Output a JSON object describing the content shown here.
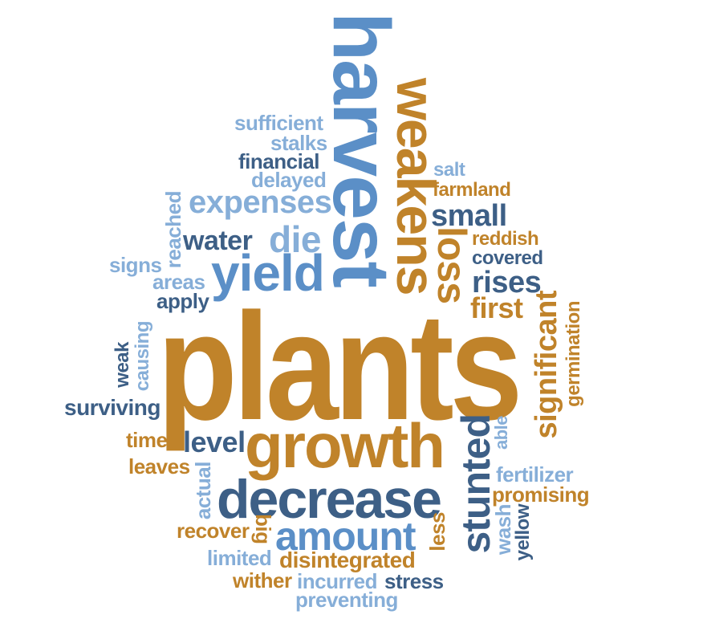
{
  "colors": {
    "orange": "#c0832a",
    "blue": "#5b8fc7",
    "light_blue": "#86aed8",
    "dark_blue": "#3d5f86"
  },
  "words": {
    "plants": "plants",
    "harvest": "harvest",
    "weakens": "weakens",
    "growth": "growth",
    "decrease": "decrease",
    "yield": "yield",
    "amount": "amount",
    "stunted": "stunted",
    "loss": "loss",
    "significant": "significant",
    "expenses": "expenses",
    "die": "die",
    "water": "water",
    "small": "small",
    "rises": "rises",
    "first": "first",
    "sufficient": "sufficient",
    "stalks": "stalks",
    "financial": "financial",
    "delayed": "delayed",
    "salt": "salt",
    "farmland": "farmland",
    "reddish": "reddish",
    "covered": "covered",
    "reached": "reached",
    "signs": "signs",
    "areas": "areas",
    "apply": "apply",
    "weak": "weak",
    "causing": "causing",
    "surviving": "surviving",
    "germination": "germination",
    "able": "able",
    "time": "time",
    "level": "level",
    "leaves": "leaves",
    "actual": "actual",
    "fertilizer": "fertilizer",
    "promising": "promising",
    "recover": "recover",
    "big": "big",
    "wash": "wash",
    "yellow": "yellow",
    "less": "less",
    "limited": "limited",
    "disintegrated": "disintegrated",
    "wither": "wither",
    "incurred": "incurred",
    "stress": "stress",
    "preventing": "preventing"
  }
}
